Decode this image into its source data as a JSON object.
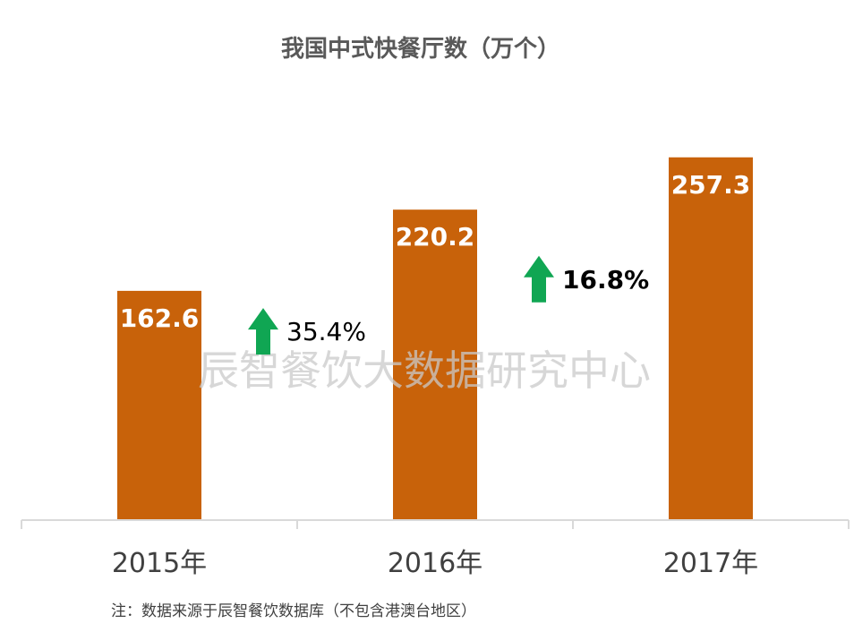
{
  "chart_data": {
    "type": "bar",
    "title": "我国中式快餐厅数（万个）",
    "categories": [
      "2015年",
      "2016年",
      "2017年"
    ],
    "values": [
      162.6,
      220.2,
      257.3
    ],
    "value_labels": [
      "162.6",
      "220.2",
      "257.3"
    ],
    "ylim": [
      0,
      280
    ],
    "grid": false,
    "growth_annotations": [
      {
        "label": "35.4%",
        "between": [
          "2015年",
          "2016年"
        ],
        "bold": false
      },
      {
        "label": "16.8%",
        "between": [
          "2016年",
          "2017年"
        ],
        "bold": true
      }
    ],
    "bar_color": "#c8620a",
    "arrow_color": "#10a653",
    "watermark": "辰智餐饮大数据研究中心",
    "note": "注：数据来源于辰智餐饮数据库（不包含港澳台地区）"
  }
}
